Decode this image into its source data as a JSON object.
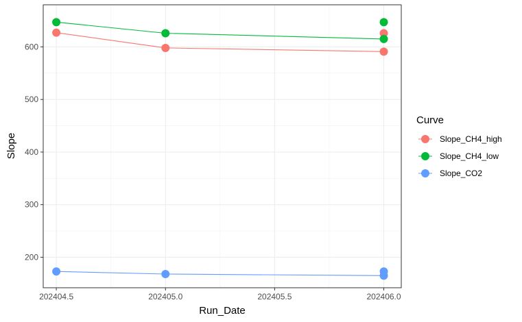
{
  "chart_data": {
    "type": "line",
    "xlabel": "Run_Date",
    "ylabel": "Slope",
    "xlim": [
      202404.44,
      202406.08
    ],
    "ylim": [
      142,
      680
    ],
    "x_ticks": [
      202404.5,
      202405.0,
      202405.5,
      202406.0
    ],
    "x_tick_labels": [
      "202404.5",
      "202405.0",
      "202405.5",
      "202406.0"
    ],
    "y_ticks": [
      200,
      300,
      400,
      500,
      600
    ],
    "y_tick_labels": [
      "200",
      "300",
      "400",
      "500",
      "600"
    ],
    "grid": true,
    "legend": {
      "title": "Curve",
      "position": "right"
    },
    "series": [
      {
        "name": "Slope_CH4_high",
        "color": "#F8766D",
        "line": [
          {
            "x": 202404.5,
            "y": 627
          },
          {
            "x": 202405.0,
            "y": 598
          },
          {
            "x": 202406.0,
            "y": 591
          }
        ],
        "points": [
          {
            "x": 202404.5,
            "y": 627
          },
          {
            "x": 202405.0,
            "y": 598
          },
          {
            "x": 202406.0,
            "y": 626
          },
          {
            "x": 202406.0,
            "y": 591
          }
        ]
      },
      {
        "name": "Slope_CH4_low",
        "color": "#00BA38",
        "line": [
          {
            "x": 202404.5,
            "y": 647
          },
          {
            "x": 202405.0,
            "y": 626
          },
          {
            "x": 202406.0,
            "y": 615
          }
        ],
        "points": [
          {
            "x": 202404.5,
            "y": 647
          },
          {
            "x": 202405.0,
            "y": 626
          },
          {
            "x": 202406.0,
            "y": 647
          },
          {
            "x": 202406.0,
            "y": 615
          }
        ]
      },
      {
        "name": "Slope_CO2",
        "color": "#619CFF",
        "line": [
          {
            "x": 202404.5,
            "y": 173
          },
          {
            "x": 202405.0,
            "y": 168
          },
          {
            "x": 202406.0,
            "y": 165
          }
        ],
        "points": [
          {
            "x": 202404.5,
            "y": 173
          },
          {
            "x": 202405.0,
            "y": 168
          },
          {
            "x": 202406.0,
            "y": 173
          },
          {
            "x": 202406.0,
            "y": 165
          }
        ]
      }
    ]
  }
}
